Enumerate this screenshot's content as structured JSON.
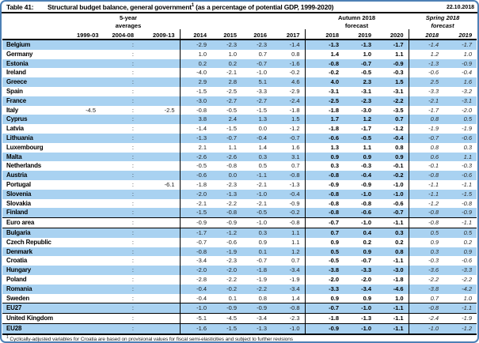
{
  "meta": {
    "table_label": "Table 41:",
    "title": "Structural budget balance, general government",
    "title_superscript": "1",
    "title_suffix": " (as a percentage of potential GDP, 1999-2020)",
    "date": "22.10.2018"
  },
  "table": {
    "groups": {
      "averages_line1": "5-year",
      "averages_line2": "averages",
      "autumn_line1": "Autumn 2018",
      "autumn_line2": "forecast",
      "spring_line1": "Spring 2018",
      "spring_line2": "forecast"
    },
    "year_headers": [
      "1999-03",
      "2004-08",
      "2009-13",
      "2014",
      "2015",
      "2016",
      "2017",
      "2018",
      "2019",
      "2020",
      "2018",
      "2019"
    ],
    "rows": [
      {
        "name": "Belgium",
        "rule_above": false,
        "values": [
          "",
          ":",
          "",
          "-2.9",
          "-2.3",
          "-2.3",
          "-1.4",
          "-1.3",
          "-1.3",
          "-1.7",
          "-1.4",
          "-1.7"
        ]
      },
      {
        "name": "Germany",
        "rule_above": false,
        "values": [
          "",
          ":",
          "",
          "1.0",
          "1.0",
          "0.7",
          "0.8",
          "1.4",
          "1.0",
          "1.1",
          "1.2",
          "1.0"
        ]
      },
      {
        "name": "Estonia",
        "rule_above": false,
        "values": [
          "",
          ":",
          "",
          "0.2",
          "0.2",
          "-0.7",
          "-1.6",
          "-0.8",
          "-0.7",
          "-0.9",
          "-1.3",
          "-0.9"
        ]
      },
      {
        "name": "Ireland",
        "rule_above": false,
        "values": [
          "",
          ":",
          "",
          "-4.0",
          "-2.1",
          "-1.0",
          "-0.2",
          "-0.2",
          "-0.5",
          "-0.3",
          "-0.6",
          "-0.4"
        ]
      },
      {
        "name": "Greece",
        "rule_above": false,
        "values": [
          "",
          ":",
          "",
          "2.9",
          "2.8",
          "5.1",
          "4.6",
          "4.0",
          "2.3",
          "1.5",
          "2.5",
          "1.6"
        ]
      },
      {
        "name": "Spain",
        "rule_above": false,
        "values": [
          "",
          ":",
          "",
          "-1.5",
          "-2.5",
          "-3.3",
          "-2.9",
          "-3.1",
          "-3.1",
          "-3.1",
          "-3.3",
          "-3.2"
        ]
      },
      {
        "name": "France",
        "rule_above": false,
        "values": [
          "",
          ":",
          "",
          "-3.0",
          "-2.7",
          "-2.7",
          "-2.4",
          "-2.5",
          "-2.3",
          "-2.2",
          "-2.1",
          "-3.1"
        ]
      },
      {
        "name": "Italy",
        "rule_above": false,
        "values": [
          "-4.5",
          ":",
          "-2.5",
          "-0.8",
          "-0.5",
          "-1.5",
          "-1.8",
          "-1.8",
          "-3.0",
          "-3.5",
          "-1.7",
          "-2.0"
        ]
      },
      {
        "name": "Cyprus",
        "rule_above": false,
        "values": [
          "",
          ":",
          "",
          "3.8",
          "2.4",
          "1.3",
          "1.5",
          "1.7",
          "1.2",
          "0.7",
          "0.8",
          "0.5"
        ]
      },
      {
        "name": "Latvia",
        "rule_above": false,
        "values": [
          "",
          ":",
          "",
          "-1.4",
          "-1.5",
          "0.0",
          "-1.2",
          "-1.8",
          "-1.7",
          "-1.2",
          "-1.9",
          "-1.9"
        ]
      },
      {
        "name": "Lithuania",
        "rule_above": false,
        "values": [
          "",
          ":",
          "",
          "-1.3",
          "-0.7",
          "-0.4",
          "-0.7",
          "-0.6",
          "-0.5",
          "-0.4",
          "-0.7",
          "-0.6"
        ]
      },
      {
        "name": "Luxembourg",
        "rule_above": false,
        "values": [
          "",
          ":",
          "",
          "2.1",
          "1.1",
          "1.4",
          "1.6",
          "1.3",
          "1.1",
          "0.8",
          "0.8",
          "0.3"
        ]
      },
      {
        "name": "Malta",
        "rule_above": false,
        "values": [
          "",
          ":",
          "",
          "-2.6",
          "-2.6",
          "0.3",
          "3.1",
          "0.9",
          "0.9",
          "0.9",
          "0.6",
          "1.1"
        ]
      },
      {
        "name": "Netherlands",
        "rule_above": false,
        "values": [
          "",
          ":",
          "",
          "-0.5",
          "-0.8",
          "0.5",
          "0.7",
          "0.3",
          "-0.3",
          "-0.1",
          "-0.1",
          "-0.3"
        ]
      },
      {
        "name": "Austria",
        "rule_above": false,
        "values": [
          "",
          ":",
          "",
          "-0.6",
          "0.0",
          "-1.1",
          "-0.8",
          "-0.8",
          "-0.4",
          "-0.2",
          "-0.8",
          "-0.6"
        ]
      },
      {
        "name": "Portugal",
        "rule_above": false,
        "values": [
          "",
          ":",
          "-6.1",
          "-1.8",
          "-2.3",
          "-2.1",
          "-1.3",
          "-0.9",
          "-0.9",
          "-1.0",
          "-1.1",
          "-1.1"
        ]
      },
      {
        "name": "Slovenia",
        "rule_above": false,
        "values": [
          "",
          ":",
          "",
          "-2.0",
          "-1.3",
          "-1.0",
          "-0.4",
          "-0.8",
          "-1.0",
          "-1.0",
          "-1.1",
          "-1.5"
        ]
      },
      {
        "name": "Slovakia",
        "rule_above": false,
        "values": [
          "",
          ":",
          "",
          "-2.1",
          "-2.2",
          "-2.1",
          "-0.9",
          "-0.8",
          "-0.8",
          "-0.6",
          "-1.2",
          "-0.8"
        ]
      },
      {
        "name": "Finland",
        "rule_above": false,
        "values": [
          "",
          ":",
          "",
          "-1.5",
          "-0.8",
          "-0.5",
          "-0.2",
          "-0.8",
          "-0.6",
          "-0.7",
          "-0.8",
          "-0.9"
        ]
      },
      {
        "name": "Euro area",
        "rule_above": true,
        "values": [
          "",
          ":",
          "",
          "-0.9",
          "-0.9",
          "-1.0",
          "-0.8",
          "-0.7",
          "-1.0",
          "-1.1",
          "-0.8",
          "-1.1"
        ]
      },
      {
        "name": "Bulgaria",
        "rule_above": true,
        "values": [
          "",
          ":",
          "",
          "-1.7",
          "-1.2",
          "0.3",
          "1.1",
          "0.7",
          "0.4",
          "0.3",
          "0.5",
          "0.5"
        ]
      },
      {
        "name": "Czech Republic",
        "rule_above": false,
        "values": [
          "",
          ":",
          "",
          "-0.7",
          "-0.6",
          "0.9",
          "1.1",
          "0.9",
          "0.2",
          "0.2",
          "0.9",
          "0.2"
        ]
      },
      {
        "name": "Denmark",
        "rule_above": false,
        "values": [
          "",
          ":",
          "",
          "-0.8",
          "-1.9",
          "0.1",
          "1.2",
          "0.5",
          "0.9",
          "0.8",
          "0.3",
          "0.9"
        ]
      },
      {
        "name": "Croatia",
        "rule_above": false,
        "values": [
          "",
          ":",
          "",
          "-3.4",
          "-2.3",
          "-0.7",
          "0.7",
          "-0.5",
          "-0.7",
          "-1.1",
          "-0.3",
          "-0.6"
        ]
      },
      {
        "name": "Hungary",
        "rule_above": false,
        "values": [
          "",
          ":",
          "",
          "-2.0",
          "-2.0",
          "-1.8",
          "-3.4",
          "-3.8",
          "-3.3",
          "-3.0",
          "-3.6",
          "-3.3"
        ]
      },
      {
        "name": "Poland",
        "rule_above": false,
        "values": [
          "",
          ":",
          "",
          "-2.8",
          "-2.2",
          "-1.9",
          "-1.9",
          "-2.0",
          "-2.0",
          "-1.8",
          "-2.2",
          "-2.2"
        ]
      },
      {
        "name": "Romania",
        "rule_above": false,
        "values": [
          "",
          ":",
          "",
          "-0.4",
          "-0.2",
          "-2.2",
          "-3.4",
          "-3.3",
          "-3.4",
          "-4.6",
          "-3.8",
          "-4.2"
        ]
      },
      {
        "name": "Sweden",
        "rule_above": false,
        "values": [
          "",
          ":",
          "",
          "-0.4",
          "0.1",
          "0.8",
          "1.4",
          "0.9",
          "0.9",
          "1.0",
          "0.7",
          "1.0"
        ]
      },
      {
        "name": "EU27",
        "rule_above": true,
        "values": [
          "",
          ":",
          "",
          "-1.0",
          "-0.9",
          "-0.9",
          "-0.8",
          "-0.7",
          "-1.0",
          "-1.1",
          "-0.8",
          "-1.1"
        ]
      },
      {
        "name": "United Kingdom",
        "rule_above": true,
        "values": [
          "",
          ":",
          "",
          "-5.1",
          "-4.5",
          "-3.4",
          "-2.3",
          "-1.8",
          "-1.3",
          "-1.1",
          "-2.4",
          "-1.9"
        ]
      },
      {
        "name": "EU28",
        "rule_above": true,
        "values": [
          "",
          ":",
          "",
          "-1.6",
          "-1.5",
          "-1.3",
          "-1.0",
          "-0.9",
          "-1.0",
          "-1.1",
          "-1.0",
          "-1.2"
        ]
      }
    ]
  },
  "footnote": {
    "marker": "1",
    "text": " Cyclically-adjusted variables for Croatia are based on provisional values for fiscal semi-elasticities and subject to further revisions"
  },
  "colors": {
    "stripe_blue": "#a9d2f1",
    "frame_blue": "#4d80b5",
    "rule_black": "#000000"
  }
}
